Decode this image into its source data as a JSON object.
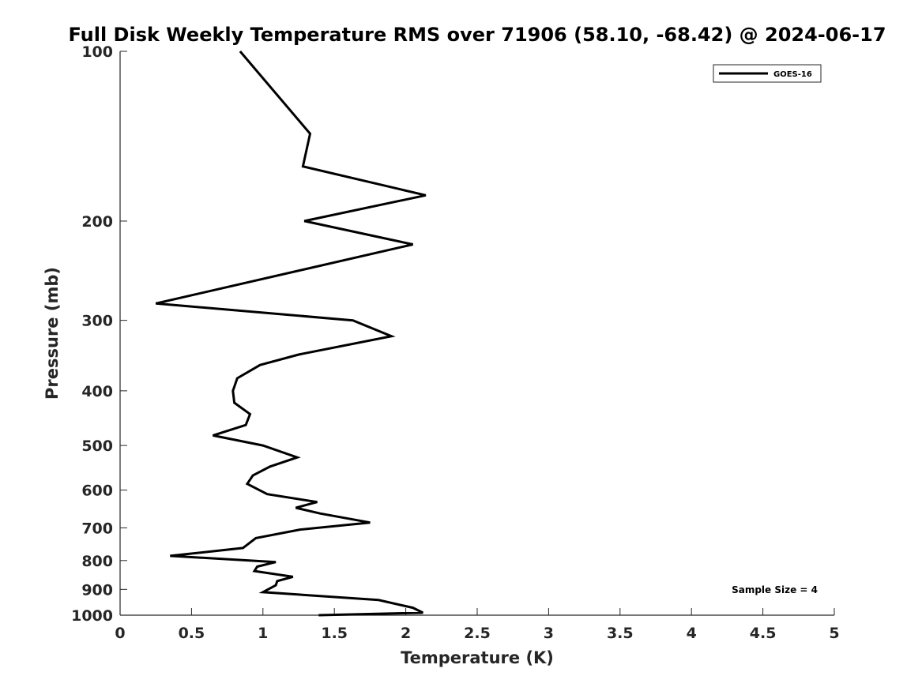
{
  "chart_data": {
    "type": "line",
    "title": "Full Disk Weekly Temperature RMS over 71906 (58.10, -68.42) @ 2024-06-17",
    "xlabel": "Temperature (K)",
    "ylabel": "Pressure (mb)",
    "xlim": [
      0,
      5
    ],
    "ylim": [
      100,
      1000
    ],
    "y_scale": "log",
    "y_reversed": true,
    "x_ticks": [
      0,
      0.5,
      1,
      1.5,
      2,
      2.5,
      3,
      3.5,
      4,
      4.5,
      5
    ],
    "x_tick_labels": [
      "0",
      "0.5",
      "1",
      "1.5",
      "2",
      "2.5",
      "3",
      "3.5",
      "4",
      "4.5",
      "5"
    ],
    "y_ticks": [
      100,
      200,
      300,
      400,
      500,
      600,
      700,
      800,
      900,
      1000
    ],
    "y_tick_labels": [
      "100",
      "200",
      "300",
      "400",
      "500",
      "600",
      "700",
      "800",
      "900",
      "1000"
    ],
    "grid": false,
    "legend_position": "top-right",
    "annotation": "Sample Size = 4",
    "series": [
      {
        "name": "GOES-16",
        "color": "#000000",
        "x": [
          0.84,
          1.33,
          1.28,
          2.14,
          1.29,
          2.05,
          0.25,
          1.63,
          1.9,
          1.25,
          0.98,
          0.82,
          0.79,
          0.8,
          0.91,
          0.88,
          0.65,
          1.0,
          1.24,
          1.05,
          0.93,
          0.89,
          1.03,
          1.38,
          1.23,
          1.4,
          1.75,
          1.26,
          0.95,
          0.86,
          0.35,
          1.09,
          0.96,
          0.94,
          1.21,
          1.1,
          1.09,
          1.0,
          1.81,
          2.05,
          2.12,
          1.39
        ],
        "y": [
          100,
          140,
          160,
          180,
          200,
          220,
          280,
          300,
          320,
          345,
          360,
          380,
          400,
          420,
          440,
          460,
          480,
          500,
          525,
          545,
          565,
          585,
          610,
          630,
          645,
          660,
          685,
          705,
          730,
          760,
          785,
          805,
          820,
          835,
          855,
          870,
          885,
          910,
          940,
          970,
          990,
          1000
        ]
      }
    ]
  }
}
